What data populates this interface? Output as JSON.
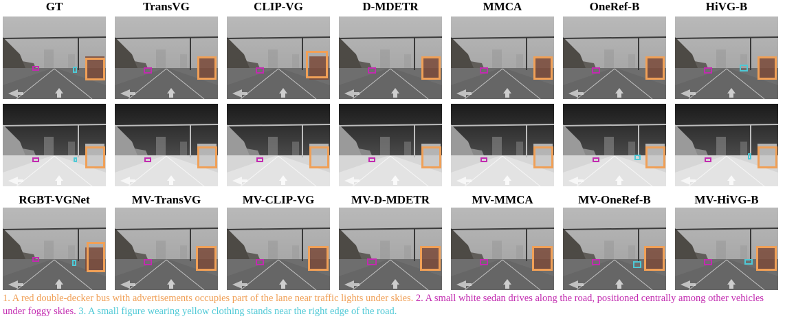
{
  "row_labels_top": [
    "GT",
    "TransVG",
    "CLIP-VG",
    "D-MDETR",
    "MMCA",
    "OneRef-B",
    "HiVG-B"
  ],
  "row_labels_bottom": [
    "RGBT-VGNet",
    "MV-TransVG",
    "MV-CLIP-VG",
    "MV-D-MDETR",
    "MV-MMCA",
    "MV-OneRef-B",
    "MV-HiVG-B"
  ],
  "captions": [
    {
      "text": "1. A red double-decker bus with advertisements occupies part of the lane near traffic lights under skies."
    },
    {
      "text": "2. A small white sedan drives along the road, positioned centrally among other vehicles under foggy skies."
    },
    {
      "text": "3. A small figure wearing yellow clothing stands near the right edge of the road."
    }
  ],
  "colors": {
    "bus_box": "#f0a057",
    "car_box": "#c22ab0",
    "person_box": "#4ec9d6"
  }
}
